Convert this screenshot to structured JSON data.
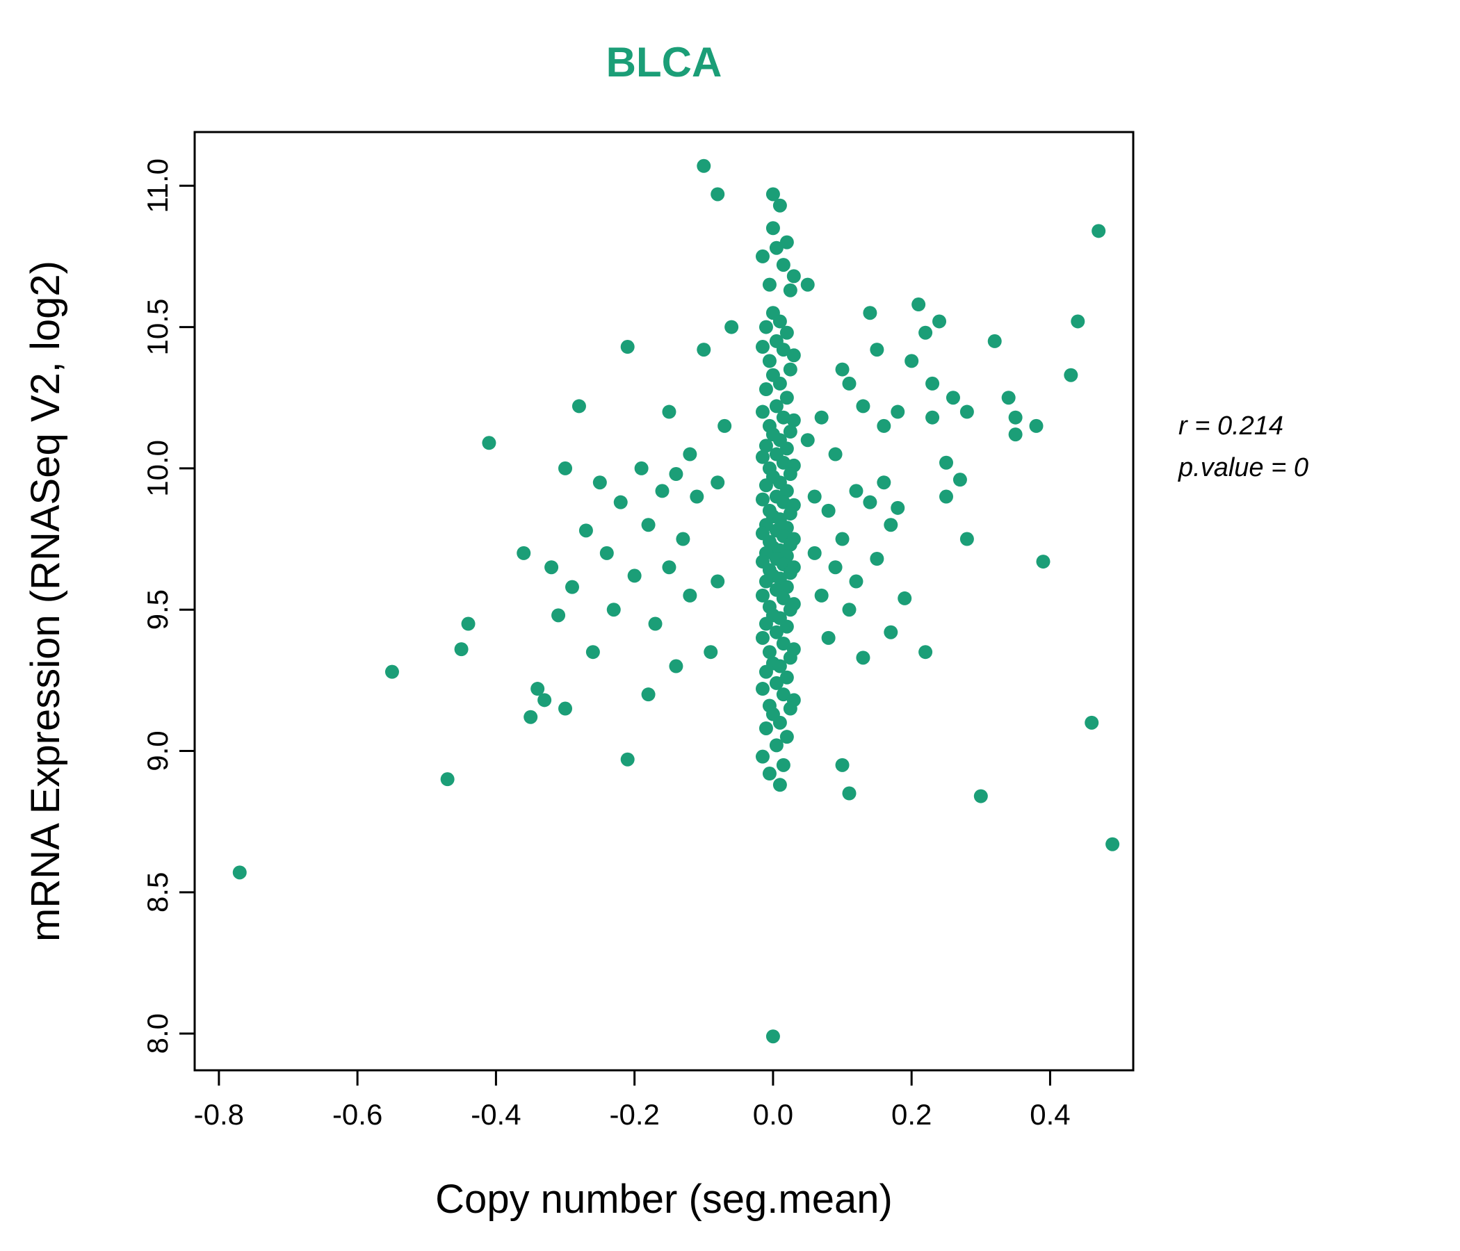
{
  "annotation": {
    "line1": "r = 0.214",
    "line2": "p.value = 0"
  },
  "chart_data": {
    "type": "scatter",
    "title": "BLCA",
    "title_color": "#1b9e77",
    "xlabel": "Copy number (seg.mean)",
    "ylabel": "mRNA Expression (RNASeq V2, log2)",
    "xlim": [
      -0.835,
      0.52
    ],
    "ylim": [
      7.87,
      11.19
    ],
    "x_ticks": [
      -0.8,
      -0.6,
      -0.4,
      -0.2,
      0.0,
      0.2,
      0.4
    ],
    "y_ticks": [
      8.0,
      8.5,
      9.0,
      9.5,
      10.0,
      10.5,
      11.0
    ],
    "grid": false,
    "legend": "none",
    "point_color": "#1b9e77",
    "annotations": [
      "r = 0.214",
      "p.value = 0"
    ],
    "points": [
      [
        0.0,
        10.97
      ],
      [
        0.01,
        10.93
      ],
      [
        0.0,
        10.85
      ],
      [
        0.02,
        10.8
      ],
      [
        0.005,
        10.78
      ],
      [
        -0.015,
        10.75
      ],
      [
        0.015,
        10.72
      ],
      [
        0.03,
        10.68
      ],
      [
        -0.005,
        10.65
      ],
      [
        0.025,
        10.63
      ],
      [
        0.0,
        10.55
      ],
      [
        0.01,
        10.52
      ],
      [
        -0.01,
        10.5
      ],
      [
        0.02,
        10.48
      ],
      [
        0.005,
        10.45
      ],
      [
        -0.015,
        10.43
      ],
      [
        0.015,
        10.42
      ],
      [
        0.03,
        10.4
      ],
      [
        -0.005,
        10.38
      ],
      [
        0.025,
        10.35
      ],
      [
        0.0,
        10.33
      ],
      [
        0.01,
        10.3
      ],
      [
        -0.01,
        10.28
      ],
      [
        0.02,
        10.25
      ],
      [
        0.005,
        10.22
      ],
      [
        -0.015,
        10.2
      ],
      [
        0.015,
        10.18
      ],
      [
        0.03,
        10.17
      ],
      [
        -0.005,
        10.15
      ],
      [
        0.025,
        10.13
      ],
      [
        0.0,
        10.12
      ],
      [
        0.01,
        10.1
      ],
      [
        -0.01,
        10.08
      ],
      [
        0.02,
        10.07
      ],
      [
        0.005,
        10.05
      ],
      [
        -0.015,
        10.04
      ],
      [
        0.015,
        10.02
      ],
      [
        0.03,
        10.01
      ],
      [
        -0.005,
        10.0
      ],
      [
        0.025,
        9.98
      ],
      [
        0.0,
        9.97
      ],
      [
        0.01,
        9.95
      ],
      [
        -0.01,
        9.94
      ],
      [
        0.02,
        9.92
      ],
      [
        0.005,
        9.9
      ],
      [
        -0.015,
        9.89
      ],
      [
        0.015,
        9.88
      ],
      [
        0.03,
        9.87
      ],
      [
        -0.005,
        9.85
      ],
      [
        0.025,
        9.84
      ],
      [
        0.0,
        9.83
      ],
      [
        0.01,
        9.82
      ],
      [
        -0.01,
        9.8
      ],
      [
        0.02,
        9.79
      ],
      [
        0.005,
        9.78
      ],
      [
        -0.015,
        9.77
      ],
      [
        0.015,
        9.76
      ],
      [
        0.03,
        9.75
      ],
      [
        -0.005,
        9.74
      ],
      [
        0.025,
        9.73
      ],
      [
        0.0,
        9.72
      ],
      [
        0.01,
        9.71
      ],
      [
        -0.01,
        9.7
      ],
      [
        0.02,
        9.69
      ],
      [
        0.005,
        9.68
      ],
      [
        -0.015,
        9.67
      ],
      [
        0.015,
        9.66
      ],
      [
        0.03,
        9.65
      ],
      [
        -0.005,
        9.64
      ],
      [
        0.025,
        9.63
      ],
      [
        0.0,
        9.62
      ],
      [
        0.01,
        9.61
      ],
      [
        -0.01,
        9.6
      ],
      [
        0.02,
        9.58
      ],
      [
        0.005,
        9.57
      ],
      [
        -0.015,
        9.55
      ],
      [
        0.015,
        9.54
      ],
      [
        0.03,
        9.52
      ],
      [
        -0.005,
        9.51
      ],
      [
        0.025,
        9.5
      ],
      [
        0.0,
        9.48
      ],
      [
        0.01,
        9.47
      ],
      [
        -0.01,
        9.45
      ],
      [
        0.02,
        9.44
      ],
      [
        0.005,
        9.42
      ],
      [
        -0.015,
        9.4
      ],
      [
        0.015,
        9.38
      ],
      [
        0.03,
        9.36
      ],
      [
        -0.005,
        9.35
      ],
      [
        0.025,
        9.33
      ],
      [
        0.0,
        9.31
      ],
      [
        0.01,
        9.3
      ],
      [
        -0.01,
        9.28
      ],
      [
        0.02,
        9.26
      ],
      [
        0.005,
        9.24
      ],
      [
        -0.015,
        9.22
      ],
      [
        0.015,
        9.2
      ],
      [
        0.03,
        9.18
      ],
      [
        -0.005,
        9.16
      ],
      [
        0.025,
        9.15
      ],
      [
        0.0,
        9.13
      ],
      [
        0.01,
        9.1
      ],
      [
        -0.01,
        9.08
      ],
      [
        0.02,
        9.05
      ],
      [
        0.005,
        9.02
      ],
      [
        -0.015,
        8.98
      ],
      [
        0.015,
        8.95
      ],
      [
        -0.005,
        8.92
      ],
      [
        0.01,
        8.88
      ],
      [
        -0.06,
        10.5
      ],
      [
        -0.07,
        10.15
      ],
      [
        -0.08,
        9.95
      ],
      [
        -0.08,
        9.6
      ],
      [
        -0.09,
        9.35
      ],
      [
        -0.1,
        10.42
      ],
      [
        -0.11,
        9.9
      ],
      [
        -0.12,
        10.05
      ],
      [
        -0.12,
        9.55
      ],
      [
        -0.13,
        9.75
      ],
      [
        -0.14,
        9.98
      ],
      [
        -0.14,
        9.3
      ],
      [
        -0.15,
        10.2
      ],
      [
        -0.15,
        9.65
      ],
      [
        -0.16,
        9.92
      ],
      [
        -0.17,
        9.45
      ],
      [
        -0.18,
        9.8
      ],
      [
        -0.18,
        9.2
      ],
      [
        -0.19,
        10.0
      ],
      [
        -0.2,
        9.62
      ],
      [
        -0.21,
        8.97
      ],
      [
        -0.21,
        10.43
      ],
      [
        -0.22,
        9.88
      ],
      [
        -0.23,
        9.5
      ],
      [
        -0.24,
        9.7
      ],
      [
        -0.25,
        9.95
      ],
      [
        -0.26,
        9.35
      ],
      [
        -0.27,
        9.78
      ],
      [
        -0.28,
        10.22
      ],
      [
        -0.29,
        9.58
      ],
      [
        -0.3,
        9.15
      ],
      [
        -0.3,
        10.0
      ],
      [
        -0.31,
        9.48
      ],
      [
        -0.32,
        9.65
      ],
      [
        -0.33,
        9.18
      ],
      [
        -0.34,
        9.22
      ],
      [
        -0.35,
        9.12
      ],
      [
        -0.36,
        9.7
      ],
      [
        -0.41,
        10.09
      ],
      [
        -0.44,
        9.45
      ],
      [
        -0.45,
        9.36
      ],
      [
        -0.47,
        8.9
      ],
      [
        -0.55,
        9.28
      ],
      [
        0.05,
        10.65
      ],
      [
        0.05,
        10.1
      ],
      [
        0.06,
        9.9
      ],
      [
        0.06,
        9.7
      ],
      [
        0.07,
        10.18
      ],
      [
        0.07,
        9.55
      ],
      [
        0.08,
        9.85
      ],
      [
        0.08,
        9.4
      ],
      [
        0.09,
        10.05
      ],
      [
        0.09,
        9.65
      ],
      [
        0.1,
        10.35
      ],
      [
        0.1,
        9.75
      ],
      [
        0.1,
        8.95
      ],
      [
        0.11,
        10.3
      ],
      [
        0.11,
        9.5
      ],
      [
        0.11,
        8.85
      ],
      [
        0.12,
        9.92
      ],
      [
        0.12,
        9.6
      ],
      [
        0.13,
        10.22
      ],
      [
        0.13,
        9.33
      ],
      [
        0.14,
        10.55
      ],
      [
        0.14,
        9.88
      ],
      [
        0.15,
        10.42
      ],
      [
        0.15,
        9.68
      ],
      [
        0.16,
        10.15
      ],
      [
        0.16,
        9.95
      ],
      [
        0.17,
        9.8
      ],
      [
        0.17,
        9.42
      ],
      [
        0.18,
        10.2
      ],
      [
        0.18,
        9.86
      ],
      [
        0.19,
        9.54
      ],
      [
        0.2,
        10.38
      ],
      [
        0.21,
        10.58
      ],
      [
        0.22,
        10.48
      ],
      [
        0.22,
        9.35
      ],
      [
        0.23,
        10.3
      ],
      [
        0.23,
        10.18
      ],
      [
        0.24,
        10.52
      ],
      [
        0.25,
        10.02
      ],
      [
        0.25,
        9.9
      ],
      [
        0.26,
        10.25
      ],
      [
        0.27,
        9.96
      ],
      [
        0.28,
        10.2
      ],
      [
        0.28,
        9.75
      ],
      [
        0.3,
        8.84
      ],
      [
        0.32,
        10.45
      ],
      [
        0.34,
        10.25
      ],
      [
        0.35,
        10.18
      ],
      [
        0.35,
        10.12
      ],
      [
        0.38,
        10.15
      ],
      [
        0.39,
        9.67
      ],
      [
        0.43,
        10.33
      ],
      [
        0.44,
        10.52
      ],
      [
        0.46,
        9.1
      ],
      [
        0.47,
        10.84
      ],
      [
        0.49,
        8.67
      ],
      [
        -0.77,
        8.57
      ],
      [
        0.0,
        7.99
      ],
      [
        -0.1,
        11.07
      ],
      [
        -0.08,
        10.97
      ]
    ]
  }
}
